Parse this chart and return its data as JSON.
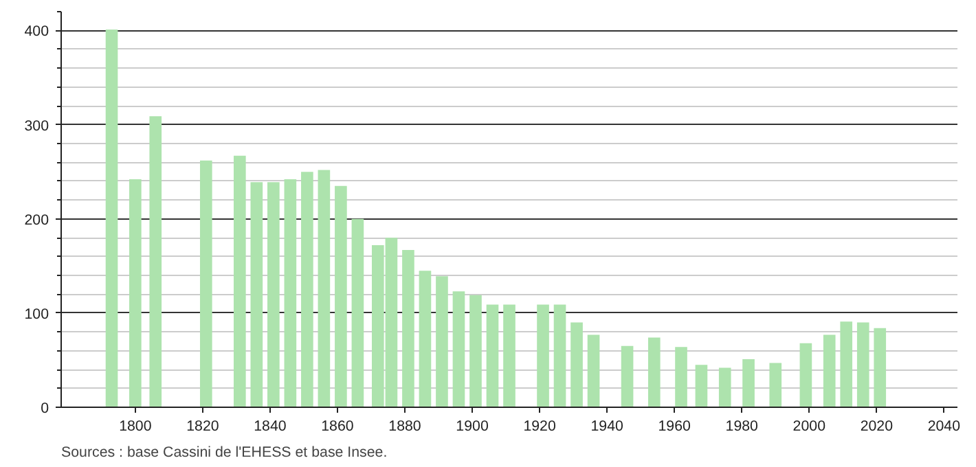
{
  "chart_data": {
    "type": "bar",
    "x": [
      1793,
      1800,
      1806,
      1821,
      1831,
      1836,
      1841,
      1846,
      1851,
      1856,
      1861,
      1866,
      1872,
      1876,
      1881,
      1886,
      1891,
      1896,
      1901,
      1906,
      1911,
      1921,
      1926,
      1931,
      1936,
      1946,
      1954,
      1962,
      1968,
      1975,
      1982,
      1990,
      1999,
      2006,
      2011,
      2016,
      2021
    ],
    "values": [
      401,
      242,
      309,
      262,
      267,
      239,
      239,
      242,
      250,
      252,
      235,
      200,
      172,
      180,
      167,
      145,
      139,
      123,
      119,
      109,
      109,
      109,
      109,
      90,
      77,
      65,
      74,
      64,
      45,
      42,
      51,
      47,
      68,
      77,
      91,
      90,
      84
    ],
    "color": "#ade3ad",
    "xlim": [
      1778,
      2044
    ],
    "xticks": [
      1800,
      1820,
      1840,
      1860,
      1880,
      1900,
      1920,
      1940,
      1960,
      1980,
      2000,
      2020,
      2040
    ],
    "ylim": [
      0,
      420
    ],
    "yticks": [
      0,
      {
        "value": 20,
        "label": null
      },
      {
        "value": 40,
        "label": null
      },
      {
        "value": 60,
        "label": null
      },
      {
        "value": 80,
        "label": null
      },
      100,
      {
        "value": 120,
        "label": null
      },
      {
        "value": 140,
        "label": null
      },
      {
        "value": 160,
        "label": null
      },
      {
        "value": 180,
        "label": null
      },
      200,
      {
        "value": 220,
        "label": null
      },
      {
        "value": 240,
        "label": null
      },
      {
        "value": 260,
        "label": null
      },
      {
        "value": 280,
        "label": null
      },
      300,
      {
        "value": 320,
        "label": null
      },
      {
        "value": 340,
        "label": null
      },
      {
        "value": 360,
        "label": null
      },
      {
        "value": 380,
        "label": null
      },
      400,
      {
        "value": 420,
        "label": null
      }
    ],
    "grid": "y",
    "annotations": [
      "Sources : base Cassini de l'EHESS et base Insee."
    ]
  }
}
